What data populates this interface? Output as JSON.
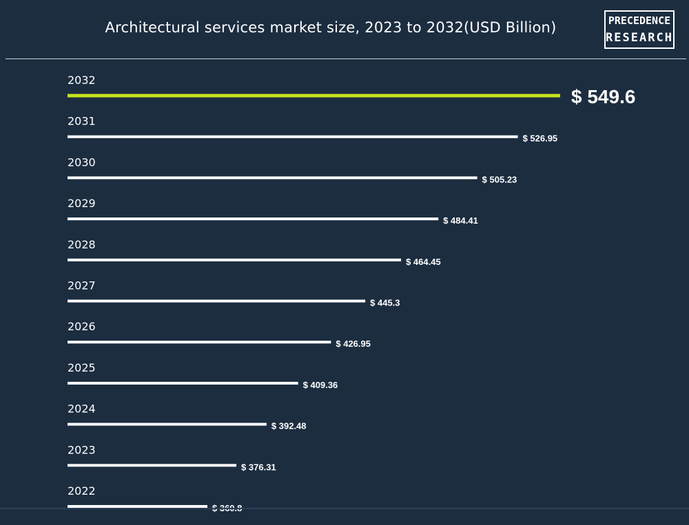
{
  "title": "Architectural services market size, 2023 to 2032(USD Billion)",
  "logo": {
    "line1": "PRECEDENCE",
    "line2": "RESEARCH"
  },
  "colors": {
    "background": "#1c2d40",
    "bar": "#ffffff",
    "highlight": "#c6e21a",
    "text": "#ffffff"
  },
  "chart_data": {
    "type": "bar",
    "orientation": "horizontal",
    "title": "Architectural services market size, 2023 to 2032(USD Billion)",
    "categories": [
      "2032",
      "2031",
      "2030",
      "2029",
      "2028",
      "2027",
      "2026",
      "2025",
      "2024",
      "2023",
      "2022"
    ],
    "values": [
      549.6,
      526.95,
      505.23,
      484.41,
      464.45,
      445.3,
      426.95,
      409.36,
      392.48,
      376.31,
      360.8
    ],
    "data_labels": [
      "$ 549.6",
      "$ 526.95",
      "$ 505.23",
      "$ 484.41",
      "$ 464.45",
      "$ 445.3",
      "$ 426.95",
      "$ 409.36",
      "$ 392.48",
      "$ 376.31",
      "$ 360.8"
    ],
    "highlight_category": "2032",
    "xlabel": "",
    "ylabel": "",
    "grid": false,
    "legend": "none"
  }
}
